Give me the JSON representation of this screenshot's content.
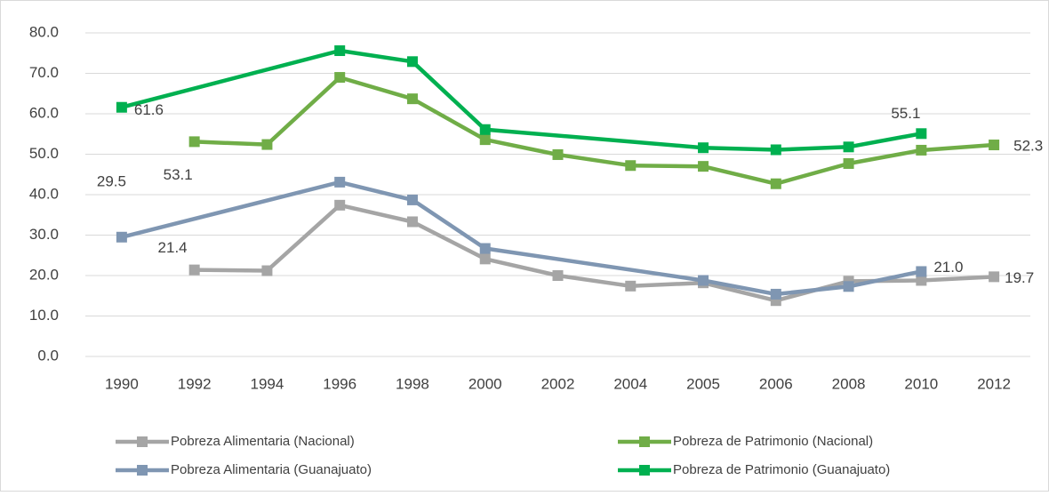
{
  "chart_data": {
    "type": "line",
    "categories": [
      "1990",
      "1992",
      "1994",
      "1996",
      "1998",
      "2000",
      "2002",
      "2004",
      "2005",
      "2006",
      "2008",
      "2010",
      "2012"
    ],
    "series": [
      {
        "name": "Pobreza Alimentaria (Nacional)",
        "color": "#a5a5a5",
        "values": [
          null,
          21.4,
          21.2,
          37.4,
          33.3,
          24.1,
          20.0,
          17.4,
          18.2,
          13.8,
          18.6,
          18.8,
          19.7
        ],
        "value_labels": [
          null,
          "21.4",
          null,
          null,
          null,
          null,
          null,
          null,
          null,
          null,
          null,
          null,
          "19.7"
        ]
      },
      {
        "name": "Pobreza de Patrimonio (Nacional)",
        "color": "#70ad47",
        "values": [
          null,
          53.1,
          52.4,
          69.0,
          63.7,
          53.6,
          49.9,
          47.2,
          47.0,
          42.7,
          47.7,
          51.0,
          52.3
        ],
        "value_labels": [
          null,
          "53.1",
          null,
          null,
          null,
          null,
          null,
          null,
          null,
          null,
          null,
          null,
          "52.3"
        ]
      },
      {
        "name": "Pobreza Alimentaria (Guanajuato)",
        "color": "#7f96b2",
        "values": [
          29.5,
          null,
          null,
          43.1,
          38.7,
          26.7,
          null,
          null,
          18.8,
          15.4,
          17.3,
          21.0,
          null
        ],
        "value_labels": [
          "29.5",
          null,
          null,
          null,
          null,
          null,
          null,
          null,
          null,
          null,
          null,
          "21.0",
          null
        ]
      },
      {
        "name": "Pobreza de Patrimonio (Guanajuato)",
        "color": "#00b050",
        "values": [
          61.6,
          null,
          null,
          75.6,
          72.9,
          56.1,
          null,
          null,
          51.6,
          51.1,
          51.8,
          55.1,
          null
        ],
        "value_labels": [
          "61.6",
          null,
          null,
          null,
          null,
          null,
          null,
          null,
          null,
          null,
          null,
          "55.1",
          null
        ]
      }
    ],
    "ylim": [
      0,
      80
    ],
    "yticks": [
      {
        "value": 0,
        "label": "0.0"
      },
      {
        "value": 10,
        "label": "10.0"
      },
      {
        "value": 20,
        "label": "20.0"
      },
      {
        "value": 30,
        "label": "30.0"
      },
      {
        "value": 40,
        "label": "40.0"
      },
      {
        "value": 50,
        "label": "50.0"
      },
      {
        "value": 60,
        "label": "60.0"
      },
      {
        "value": 70,
        "label": "70.0"
      },
      {
        "value": 80,
        "label": "80.0"
      }
    ],
    "grid": true,
    "connect_gaps": true,
    "legend": "bottom"
  }
}
